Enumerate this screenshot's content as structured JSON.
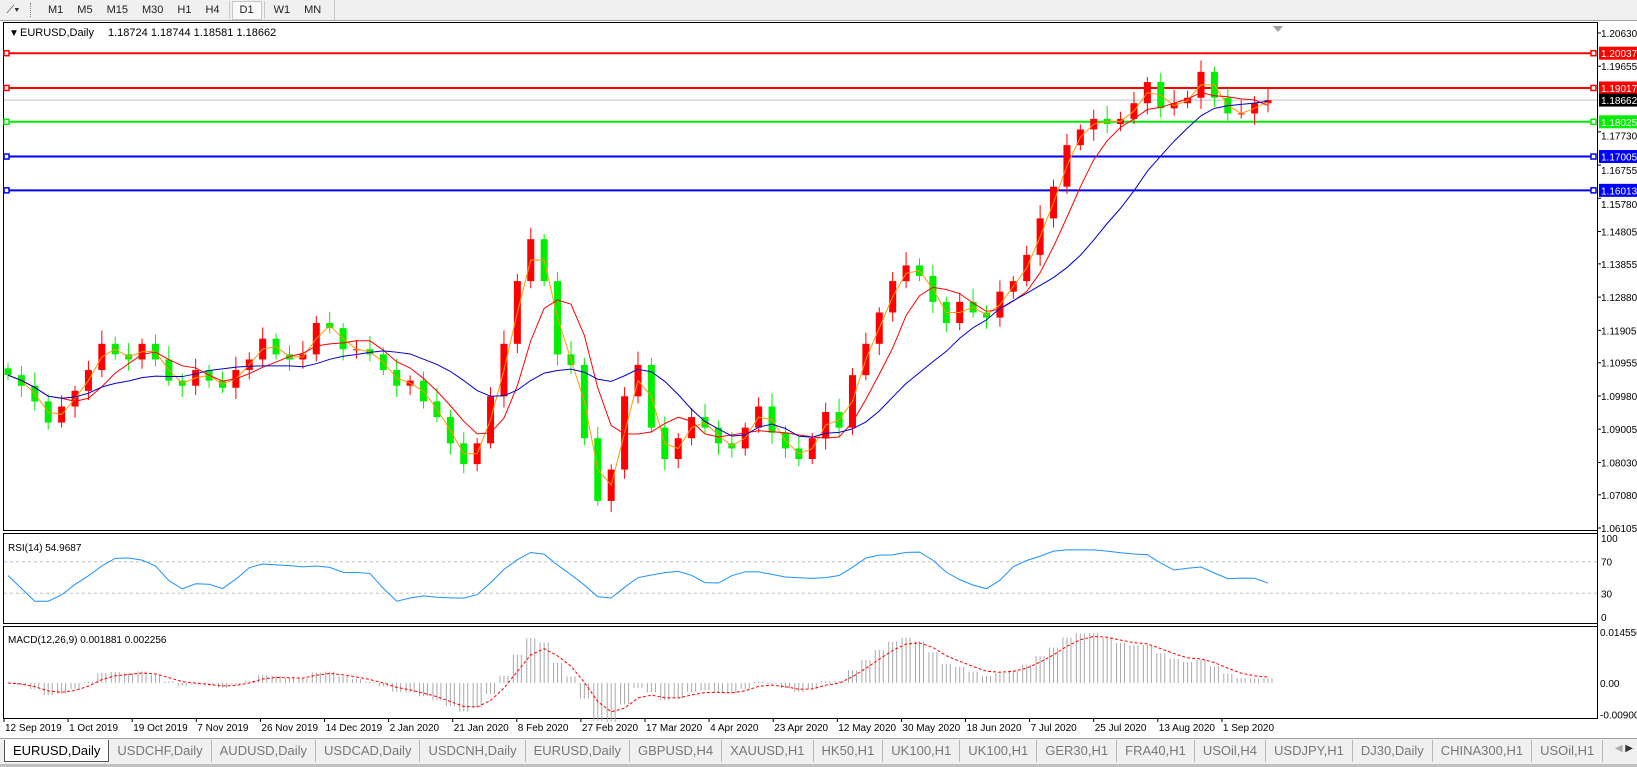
{
  "toolbar": {
    "tools_icon": "line-tools-icon",
    "timeframes": [
      "M1",
      "M5",
      "M15",
      "M30",
      "H1",
      "H4",
      "D1",
      "W1",
      "MN"
    ],
    "active_timeframe": "D1"
  },
  "chart_header": {
    "symbol": "EURUSD,Daily",
    "ohlc": "1.18724 1.18744 1.18581 1.18662"
  },
  "colors": {
    "bull": "#ff0000",
    "bear": "#00ee00",
    "ma_fast": "#ff9900",
    "ma_mid": "#ff0000",
    "ma_slow": "#0000cc",
    "rsi": "#1e90ff",
    "macd_hist": "#a8a8a8",
    "macd_signal": "#ff0000"
  },
  "chart_data": {
    "type": "candlestick",
    "symbol": "EURUSD",
    "timeframe": "Daily",
    "closes": [
      1.1059,
      1.1028,
      1.0982,
      1.092,
      1.0967,
      1.1013,
      1.1074,
      1.1151,
      1.112,
      1.1105,
      1.1151,
      1.1105,
      1.1043,
      1.1028,
      1.1074,
      1.1043,
      1.1022,
      1.1074,
      1.1105,
      1.1166,
      1.112,
      1.1105,
      1.112,
      1.1212,
      1.1197,
      1.1135,
      1.1135,
      1.112,
      1.1074,
      1.1028,
      1.1043,
      1.0982,
      1.0936,
      1.0859,
      1.0798,
      1.0859,
      1.0997,
      1.1151,
      1.1335,
      1.1458,
      1.1335,
      1.112,
      1.1089,
      1.0874,
      1.069,
      1.0782,
      1.0997,
      1.1089,
      1.0905,
      1.0813,
      1.0874,
      1.0936,
      1.0905,
      1.0859,
      1.0844,
      1.0905,
      1.0967,
      1.089,
      1.0844,
      1.0813,
      1.0874,
      1.0951,
      1.0905,
      1.1059,
      1.1151,
      1.1243,
      1.1335,
      1.1381,
      1.135,
      1.1274,
      1.1212,
      1.1274,
      1.1243,
      1.1228,
      1.1304,
      1.1335,
      1.1412,
      1.1519,
      1.1612,
      1.1734,
      1.178,
      1.1811,
      1.1796,
      1.1811,
      1.1857,
      1.1919,
      1.1842,
      1.1857,
      1.1873,
      1.1949,
      1.1873,
      1.1827,
      1.1827,
      1.1857,
      1.1866
    ],
    "ylim": [
      1.06105,
      1.2063
    ],
    "price_ticks": [
      "1.20630",
      "1.19655",
      "1.17730",
      "1.16755",
      "1.15780",
      "1.14805",
      "1.13855",
      "1.12880",
      "1.11905",
      "1.10955",
      "1.09980",
      "1.09005",
      "1.08030",
      "1.07080",
      "1.06105"
    ],
    "x_ticks": [
      "12 Sep 2019",
      "1 Oct 2019",
      "19 Oct 2019",
      "7 Nov 2019",
      "26 Nov 2019",
      "14 Dec 2019",
      "2 Jan 2020",
      "21 Jan 2020",
      "8 Feb 2020",
      "27 Feb 2020",
      "17 Mar 2020",
      "4 Apr 2020",
      "23 Apr 2020",
      "12 May 2020",
      "30 May 2020",
      "18 Jun 2020",
      "7 Jul 2020",
      "25 Jul 2020",
      "13 Aug 2020",
      "1 Sep 2020"
    ],
    "current_price": "1.18662",
    "levels": [
      {
        "price": "1.20037",
        "color": "#ff0000"
      },
      {
        "price": "1.19017",
        "color": "#ff0000"
      },
      {
        "price": "1.18025",
        "color": "#00ee00"
      },
      {
        "price": "1.17005",
        "color": "#0000ff"
      },
      {
        "price": "1.16013",
        "color": "#0000ff"
      }
    ],
    "moving_averages": [
      "fast (orange)",
      "medium (red)",
      "slow (blue)"
    ],
    "rsi": {
      "label": "RSI(14) 54.9687",
      "ticks": [
        "100",
        "70",
        "30",
        "0"
      ],
      "levels": [
        70,
        30
      ]
    },
    "macd": {
      "label": "MACD(12,26,9) 0.001881 0.002256",
      "ticks": [
        "0.014556",
        "0.00",
        "-0.00900"
      ],
      "ylim": [
        -0.009,
        0.014556
      ]
    },
    "grid": false
  },
  "tabs": {
    "items": [
      "EURUSD,Daily",
      "USDCHF,Daily",
      "AUDUSD,Daily",
      "USDCAD,Daily",
      "USDCNH,Daily",
      "EURUSD,Daily",
      "GBPUSD,H4",
      "XAUUSD,H1",
      "HK50,H1",
      "UK100,H1",
      "UK100,H1",
      "GER30,H1",
      "FRA40,H1",
      "USOil,H4",
      "USDJPY,H1",
      "DJ30,Daily",
      "CHINA300,H1",
      "USOil,H1"
    ],
    "active_index": 0,
    "scroll_left": "◀",
    "scroll_right": "▶"
  }
}
